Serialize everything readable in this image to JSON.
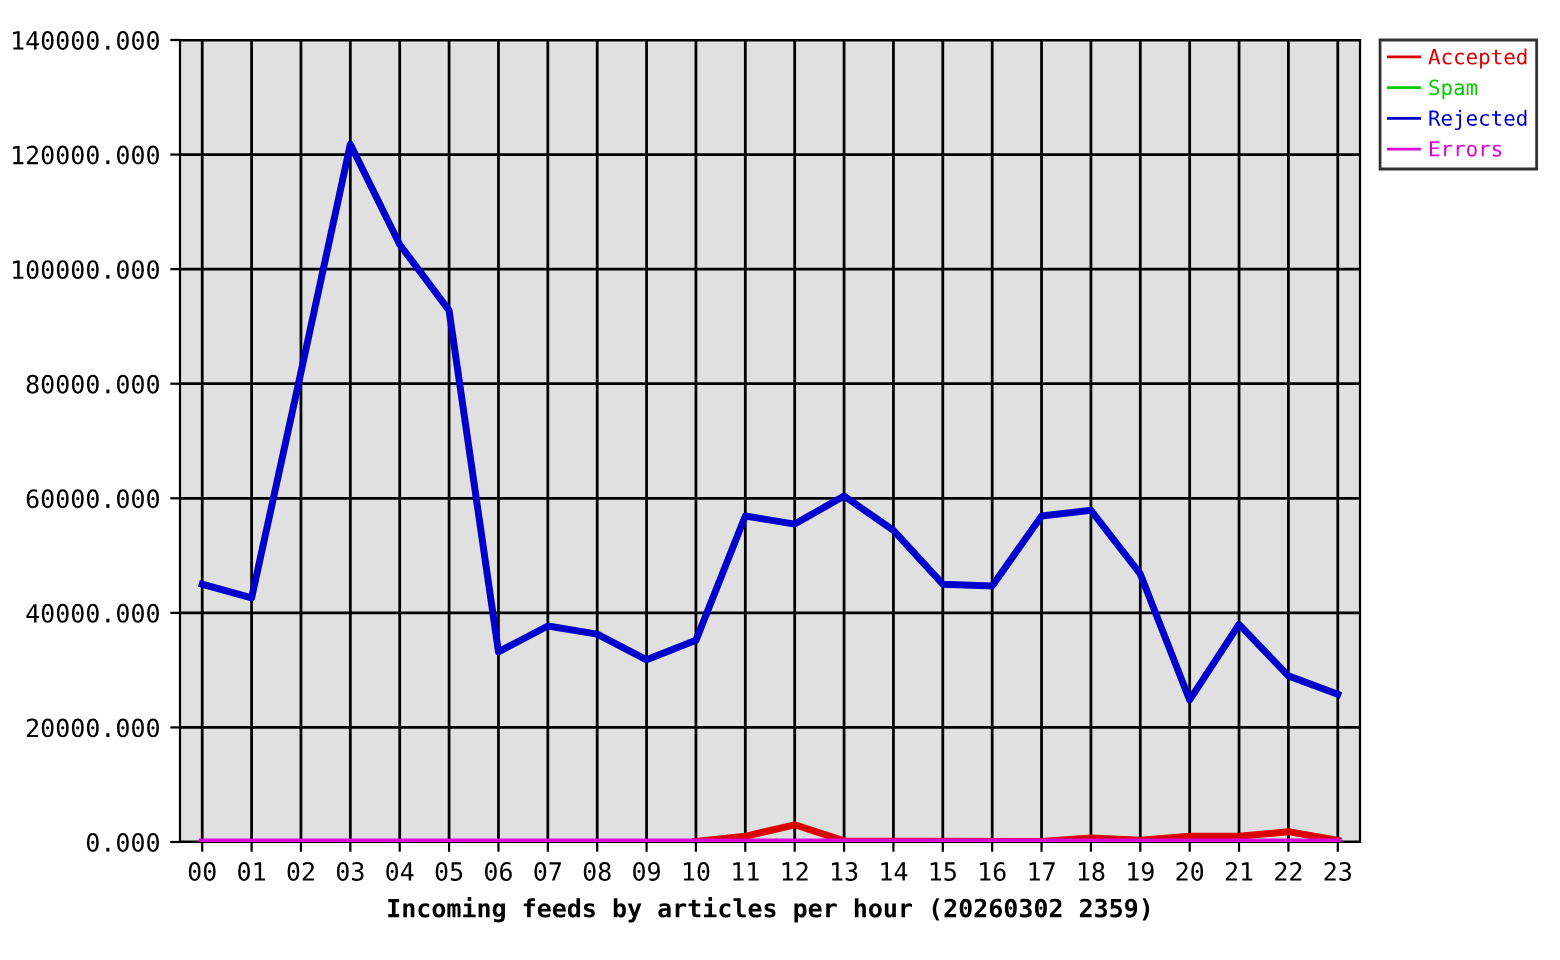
{
  "chart_data": {
    "type": "line",
    "xlabel": "Incoming feeds by articles per hour (20260302 2359)",
    "categories": [
      "00",
      "01",
      "02",
      "03",
      "04",
      "05",
      "06",
      "07",
      "08",
      "09",
      "10",
      "11",
      "12",
      "13",
      "14",
      "15",
      "16",
      "17",
      "18",
      "19",
      "20",
      "21",
      "22",
      "23"
    ],
    "series": [
      {
        "name": "Accepted",
        "color": "#dd0000",
        "values": [
          null,
          null,
          null,
          null,
          null,
          null,
          null,
          null,
          null,
          null,
          100,
          1000,
          3000,
          200,
          null,
          null,
          null,
          100,
          700,
          300,
          1000,
          1000,
          1800,
          300
        ]
      },
      {
        "name": "Spam",
        "color": "#00cc00",
        "values": [
          null,
          null,
          null,
          null,
          null,
          null,
          null,
          null,
          null,
          null,
          null,
          null,
          null,
          null,
          null,
          null,
          null,
          null,
          null,
          null,
          null,
          null,
          null,
          null
        ]
      },
      {
        "name": "Rejected",
        "color": "#0000cc",
        "values": [
          45000,
          42600,
          82000,
          121800,
          104300,
          92800,
          33200,
          37700,
          36300,
          31800,
          35200,
          56900,
          55500,
          60400,
          54400,
          45000,
          44700,
          56900,
          57900,
          46800,
          24800,
          38000,
          29000,
          25800
        ]
      },
      {
        "name": "Errors",
        "color": "#dd00dd",
        "values": [
          0,
          0,
          0,
          0,
          0,
          0,
          0,
          0,
          0,
          0,
          0,
          0,
          0,
          0,
          0,
          0,
          0,
          0,
          0,
          0,
          0,
          0,
          0,
          0
        ]
      }
    ],
    "ylim": [
      0,
      140000
    ],
    "yticks": [
      {
        "value": 0,
        "label": "0.000"
      },
      {
        "value": 20000,
        "label": "20000.000"
      },
      {
        "value": 40000,
        "label": "40000.000"
      },
      {
        "value": 60000,
        "label": "60000.000"
      },
      {
        "value": 80000,
        "label": "80000.000"
      },
      {
        "value": 100000,
        "label": "100000.000"
      },
      {
        "value": 120000,
        "label": "120000.000"
      },
      {
        "value": 140000,
        "label": "140000.000"
      }
    ],
    "grid": true,
    "legend": "top right",
    "marker": "none",
    "line_style": "solid"
  }
}
